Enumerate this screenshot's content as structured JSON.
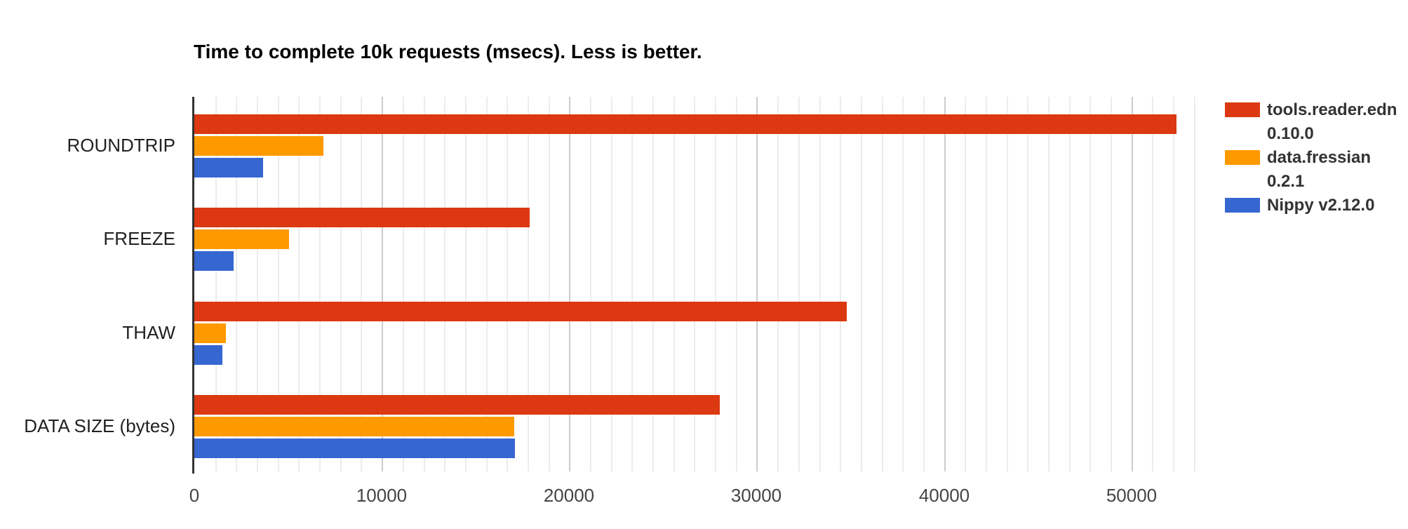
{
  "title": "Time to complete 10k requests (msecs). Less is better.",
  "chart_data": {
    "type": "bar",
    "orientation": "horizontal",
    "title": "Time to complete 10k requests (msecs). Less is better.",
    "categories": [
      "ROUNDTRIP",
      "FREEZE",
      "THAW",
      "DATA SIZE (bytes)"
    ],
    "series": [
      {
        "name": "tools.reader.edn 0.10.0",
        "label_lines": [
          "tools.reader.edn",
          "0.10.0"
        ],
        "color": "#DC3912",
        "values": [
          52400,
          17900,
          34800,
          28050
        ]
      },
      {
        "name": "data.fressian 0.2.1",
        "label_lines": [
          "data.fressian",
          "0.2.1"
        ],
        "color": "#FF9900",
        "values": [
          6900,
          5050,
          1700,
          17050
        ]
      },
      {
        "name": "Nippy v2.12.0",
        "label_lines": [
          "Nippy v2.12.0"
        ],
        "color": "#3667D1",
        "values": [
          3650,
          2100,
          1500,
          17100
        ]
      }
    ],
    "x_axis": {
      "min": 0,
      "max": 54500,
      "major_step": 10000,
      "minors_per_major": 9,
      "tick_labels": [
        "0",
        "10000",
        "20000",
        "30000",
        "40000",
        "50000"
      ]
    },
    "grid": true,
    "legend_position": "right"
  },
  "colors": {
    "background": "#FFFFFF",
    "baseline": "#333333",
    "major_gridline": "#CCCCCC",
    "minor_gridline": "#ECECEC",
    "title_text": "#000000",
    "category_label": "#212121",
    "tick_label": "#444444",
    "legend_text": "#333333"
  }
}
